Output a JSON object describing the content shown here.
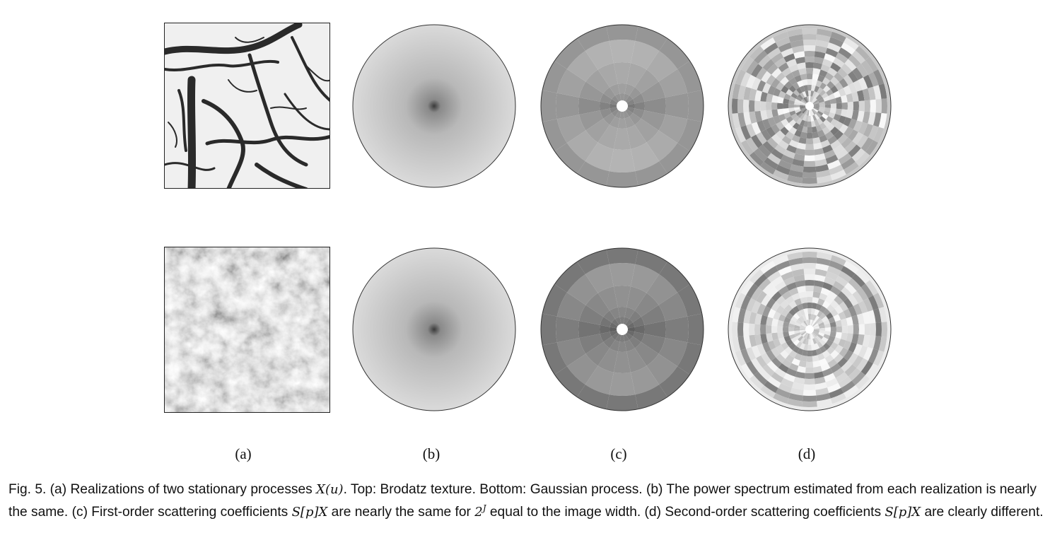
{
  "figure": {
    "sublabels": [
      "(a)",
      "(b)",
      "(c)",
      "(d)"
    ],
    "rows": [
      {
        "name": "Brodatz texture"
      },
      {
        "name": "Gaussian process"
      }
    ],
    "caption": {
      "prefix": "Fig. 5.",
      "part1": " (a) Realizations of two stationary processes ",
      "m1": "X(u)",
      "part2": ". Top: Brodatz texture. Bottom: Gaussian process. (b) The power spectrum estimated from each realization is nearly the same. (c) First-order scattering coefficients ",
      "m2": "S[p]X",
      "part3": " are nearly the same for ",
      "m3_base": "2",
      "m3_sup": "J",
      "part4": " equal to the image width. (d) Second-order scattering coefficients ",
      "m4": "S[p]X",
      "part5": " are clearly different."
    }
  }
}
